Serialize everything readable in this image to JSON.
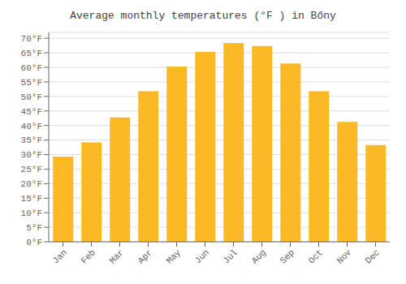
{
  "chart_data": {
    "type": "bar",
    "title": "Average monthly temperatures (°F ) in Bőny",
    "categories": [
      "Jan",
      "Feb",
      "Mar",
      "Apr",
      "May",
      "Jun",
      "Jul",
      "Aug",
      "Sep",
      "Oct",
      "Nov",
      "Dec"
    ],
    "values": [
      29.3,
      34.2,
      42.8,
      51.8,
      60.3,
      65.3,
      68.4,
      67.3,
      61.3,
      51.8,
      41.2,
      33.3
    ],
    "color": "#FBBA25",
    "ylim": [
      0,
      72
    ],
    "yticks": [
      {
        "value": 0,
        "label": "0°F"
      },
      {
        "value": 5,
        "label": "5°F"
      },
      {
        "value": 10,
        "label": "10°F"
      },
      {
        "value": 15,
        "label": "15°F"
      },
      {
        "value": 20,
        "label": "20°F"
      },
      {
        "value": 25,
        "label": "25°F"
      },
      {
        "value": 30,
        "label": "30°F"
      },
      {
        "value": 35,
        "label": "35°F"
      },
      {
        "value": 40,
        "label": "40°F"
      },
      {
        "value": 45,
        "label": "45°F"
      },
      {
        "value": 50,
        "label": "50°F"
      },
      {
        "value": 55,
        "label": "55°F"
      },
      {
        "value": 60,
        "label": "60°F"
      },
      {
        "value": 65,
        "label": "65°F"
      },
      {
        "value": 70,
        "label": "70°F"
      }
    ],
    "grid": true
  }
}
